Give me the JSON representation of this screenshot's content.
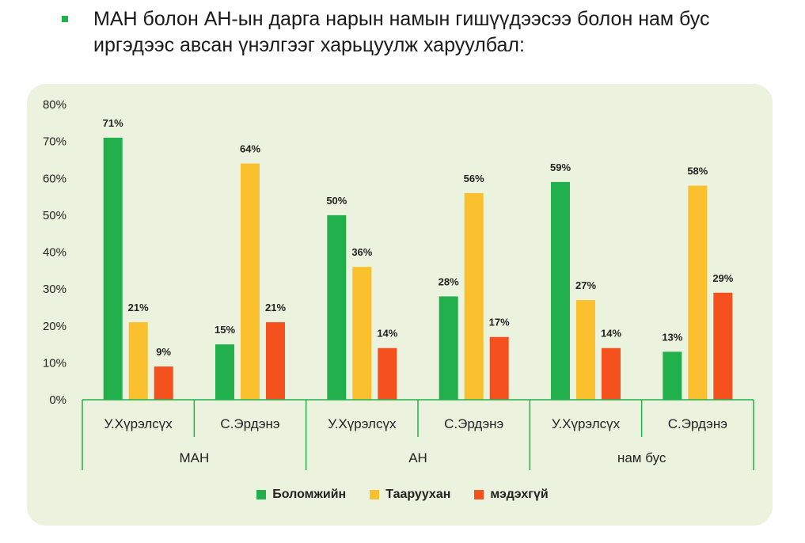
{
  "heading": {
    "line1": "МАН болон АН-ын дарга нарын намын гишүүдээсээ болон нам бус",
    "line2": "иргэдээс авсан үнэлгээг харьцуулж харуулбал:"
  },
  "chart_data": {
    "type": "bar",
    "title": "",
    "xlabel": "",
    "ylabel": "",
    "ylim": [
      0,
      80
    ],
    "y_ticks": [
      "0%",
      "10%",
      "20%",
      "30%",
      "40%",
      "50%",
      "60%",
      "70%",
      "80%"
    ],
    "grid": false,
    "legend_position": "bottom",
    "groups": [
      "МАН",
      "АН",
      "нам бус"
    ],
    "categories": [
      "У.Хүрэлсүх",
      "С.Эрдэнэ",
      "У.Хүрэлсүх",
      "С.Эрдэнэ",
      "У.Хүрэлсүх",
      "С.Эрдэнэ"
    ],
    "series": [
      {
        "name": "Боломжийн",
        "color": "#21b04b",
        "values": [
          71,
          15,
          50,
          28,
          59,
          13
        ]
      },
      {
        "name": "Тааруухан",
        "color": "#fbc02d",
        "values": [
          21,
          64,
          36,
          56,
          27,
          58
        ]
      },
      {
        "name": "мэдэхгүй",
        "color": "#f4511e",
        "values": [
          9,
          21,
          14,
          17,
          14,
          29
        ]
      }
    ]
  }
}
